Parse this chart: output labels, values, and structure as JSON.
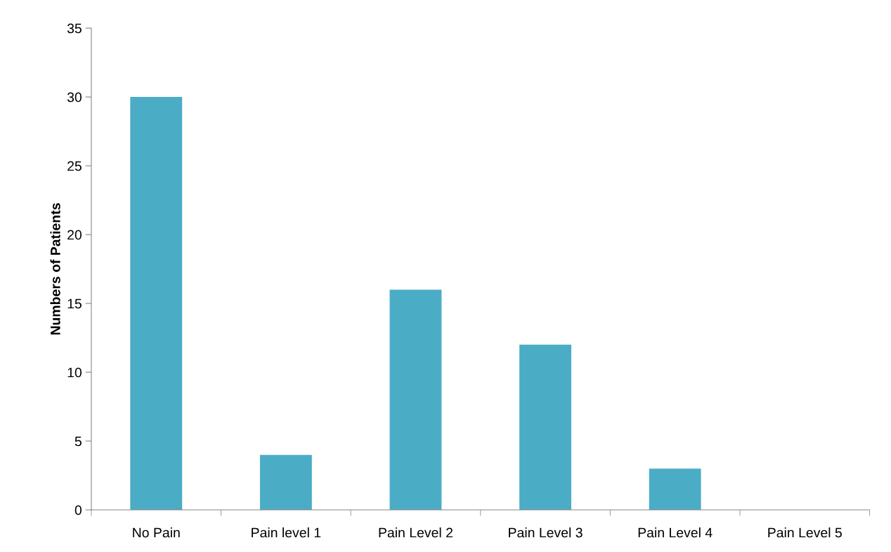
{
  "chart_data": {
    "type": "bar",
    "ylabel": "Numbers of Patients",
    "categories": [
      "No Pain",
      "Pain level 1",
      "Pain Level 2",
      "Pain Level 3",
      "Pain Level 4",
      "Pain Level 5"
    ],
    "values": [
      30,
      4,
      16,
      12,
      3,
      0
    ],
    "color": "#4bacc6",
    "ylim": [
      0,
      35
    ],
    "yticks": [
      0,
      5,
      10,
      15,
      20,
      25,
      30,
      35
    ],
    "grid": false,
    "legend": false
  }
}
